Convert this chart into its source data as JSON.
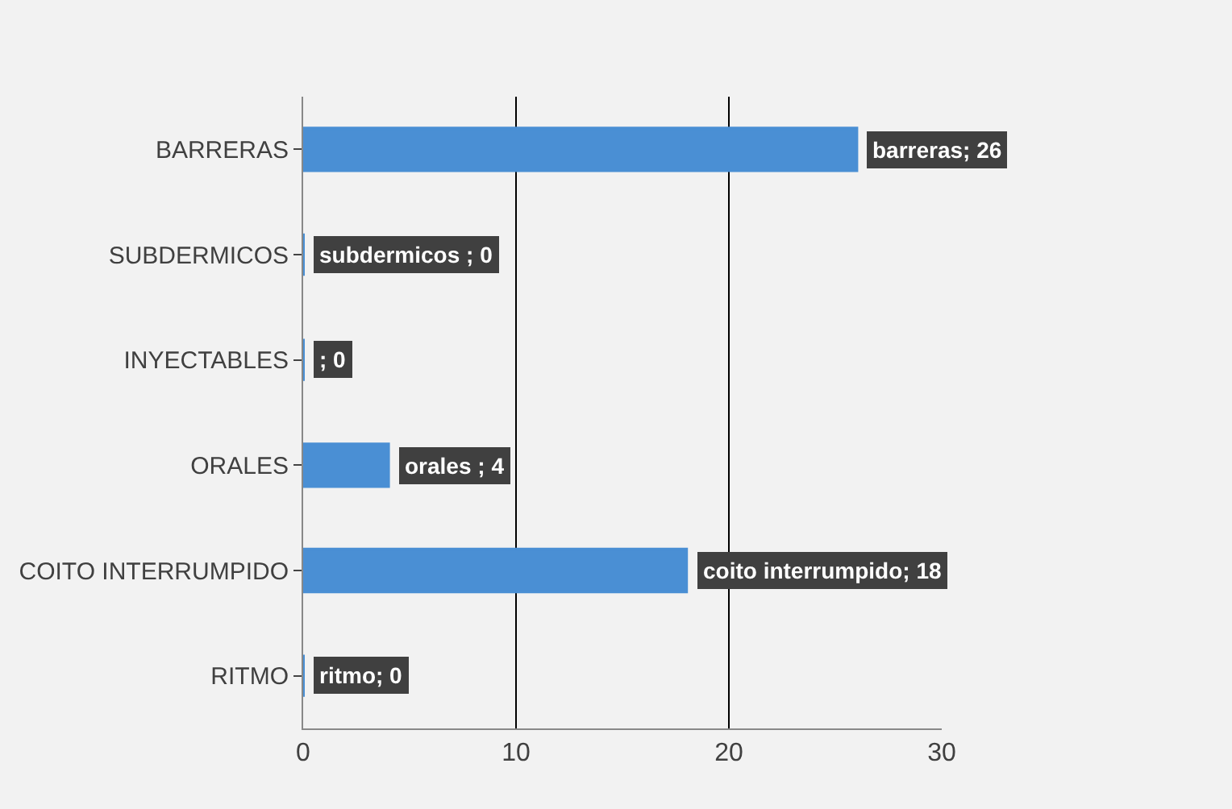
{
  "chart_data": {
    "type": "bar",
    "orientation": "horizontal",
    "categories": [
      "BARRERAS",
      "SUBDERMICOS",
      "INYECTABLES",
      "ORALES",
      "COITO INTERRUMPIDO",
      "RITMO"
    ],
    "values": [
      26,
      0,
      0,
      4,
      18,
      0
    ],
    "color": "#4a8fd4",
    "value_labels": [
      "barreras; 26",
      "subdermicos ; 0",
      "; 0",
      "orales ; 4",
      "coito interrumpido; 18",
      "ritmo; 0"
    ],
    "xlim": [
      0,
      30
    ],
    "xticks": [
      0,
      10,
      20,
      30
    ],
    "grid": "x"
  }
}
